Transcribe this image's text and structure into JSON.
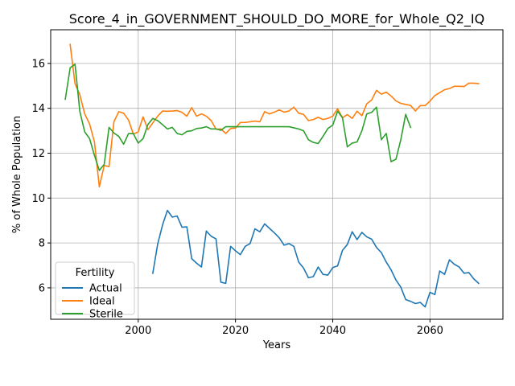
{
  "chart_data": {
    "type": "line",
    "title": "Score_4_in_GOVERNMENT_SHOULD_DO_MORE_for_Whole_Q2_IQ",
    "xlabel": "Years",
    "ylabel": "% of Whole Population",
    "xlim": [
      1982,
      2075
    ],
    "ylim": [
      4.6,
      17.5
    ],
    "xticks": [
      2000,
      2020,
      2040,
      2060
    ],
    "yticks": [
      6,
      8,
      10,
      12,
      14,
      16
    ],
    "grid": true,
    "legend": {
      "title": "Fertility",
      "placement": "lower-left"
    },
    "series": [
      {
        "name": "Actual",
        "color": "#1f77b4",
        "x": [
          2003,
          2004,
          2005,
          2006,
          2007,
          2008,
          2009,
          2010,
          2011,
          2012,
          2013,
          2014,
          2015,
          2016,
          2017,
          2018,
          2019,
          2020,
          2021,
          2022,
          2023,
          2024,
          2025,
          2026,
          2027,
          2028,
          2029,
          2030,
          2031,
          2032,
          2033,
          2034,
          2035,
          2036,
          2037,
          2038,
          2039,
          2040,
          2041,
          2042,
          2043,
          2044,
          2045,
          2046,
          2047,
          2048,
          2049,
          2050,
          2051,
          2052,
          2053,
          2054,
          2055,
          2056,
          2057,
          2058,
          2059,
          2060,
          2061,
          2062,
          2063,
          2064,
          2065,
          2066,
          2067,
          2068,
          2069,
          2070
        ],
        "y": [
          6.65,
          7.95,
          8.8,
          9.45,
          9.15,
          9.2,
          8.7,
          8.72,
          7.3,
          7.1,
          6.93,
          8.53,
          8.3,
          8.18,
          6.25,
          6.2,
          7.85,
          7.65,
          7.48,
          7.85,
          7.97,
          8.63,
          8.5,
          8.85,
          8.65,
          8.45,
          8.23,
          7.9,
          7.97,
          7.85,
          7.15,
          6.88,
          6.45,
          6.5,
          6.93,
          6.6,
          6.57,
          6.9,
          6.98,
          7.67,
          7.93,
          8.5,
          8.15,
          8.47,
          8.27,
          8.17,
          7.8,
          7.57,
          7.15,
          6.8,
          6.35,
          6.03,
          5.48,
          5.4,
          5.3,
          5.35,
          5.15,
          5.8,
          5.7,
          6.75,
          6.6,
          7.25,
          7.05,
          6.93,
          6.65,
          6.68,
          6.4,
          6.2
        ]
      },
      {
        "name": "Ideal",
        "color": "#ff7f0e",
        "x": [
          1986,
          1987,
          1988,
          1989,
          1990,
          1991,
          1992,
          1993,
          1994,
          1995,
          1996,
          1997,
          1998,
          1999,
          2000,
          2001,
          2002,
          2003,
          2004,
          2005,
          2006,
          2007,
          2008,
          2009,
          2010,
          2011,
          2012,
          2013,
          2014,
          2015,
          2016,
          2017,
          2018,
          2019,
          2020,
          2021,
          2022,
          2023,
          2024,
          2025,
          2026,
          2027,
          2028,
          2029,
          2030,
          2031,
          2032,
          2033,
          2034,
          2035,
          2036,
          2037,
          2038,
          2039,
          2040,
          2041,
          2042,
          2043,
          2044,
          2045,
          2046,
          2047,
          2048,
          2049,
          2050,
          2051,
          2052,
          2053,
          2054,
          2055,
          2056,
          2057,
          2058,
          2059,
          2060,
          2061,
          2062,
          2063,
          2064,
          2065,
          2066,
          2067,
          2068,
          2069,
          2070
        ],
        "y": [
          16.85,
          15.1,
          14.6,
          13.75,
          13.3,
          12.5,
          10.5,
          11.45,
          11.4,
          13.4,
          13.85,
          13.78,
          13.48,
          12.85,
          12.95,
          13.62,
          13.05,
          13.35,
          13.65,
          13.88,
          13.87,
          13.88,
          13.9,
          13.82,
          13.65,
          14.03,
          13.65,
          13.75,
          13.65,
          13.45,
          13.07,
          13.08,
          12.88,
          13.1,
          13.12,
          13.37,
          13.37,
          13.4,
          13.43,
          13.4,
          13.85,
          13.75,
          13.83,
          13.93,
          13.83,
          13.88,
          14.05,
          13.78,
          13.73,
          13.45,
          13.5,
          13.6,
          13.5,
          13.55,
          13.65,
          13.98,
          13.58,
          13.72,
          13.55,
          13.87,
          13.67,
          14.2,
          14.37,
          14.8,
          14.63,
          14.72,
          14.55,
          14.33,
          14.22,
          14.17,
          14.13,
          13.88,
          14.12,
          14.12,
          14.32,
          14.57,
          14.7,
          14.83,
          14.88,
          14.98,
          14.98,
          14.97,
          15.12,
          15.12,
          15.1
        ]
      },
      {
        "name": "Sterile",
        "color": "#2ca02c",
        "x": [
          1985,
          1986,
          1987,
          1988,
          1989,
          1990,
          1991,
          1992,
          1993,
          1994,
          1995,
          1996,
          1997,
          1998,
          1999,
          2000,
          2001,
          2002,
          2003,
          2004,
          2005,
          2006,
          2007,
          2008,
          2009,
          2010,
          2011,
          2012,
          2013,
          2014,
          2015,
          2016,
          2017,
          2018,
          2019,
          2020,
          2021,
          2022,
          2023,
          2024,
          2025,
          2026,
          2027,
          2028,
          2029,
          2030,
          2031,
          2032,
          2033,
          2034,
          2035,
          2036,
          2037,
          2038,
          2039,
          2040,
          2041,
          2042,
          2043,
          2044,
          2045,
          2046,
          2047,
          2048,
          2049,
          2050,
          2051,
          2052,
          2053,
          2054,
          2055,
          2056
        ],
        "y": [
          14.4,
          15.8,
          15.97,
          13.85,
          12.95,
          12.65,
          11.9,
          11.23,
          11.5,
          13.15,
          12.9,
          12.75,
          12.4,
          12.87,
          12.87,
          12.45,
          12.65,
          13.28,
          13.55,
          13.45,
          13.27,
          13.08,
          13.15,
          12.88,
          12.82,
          12.97,
          13.0,
          13.1,
          13.12,
          13.18,
          13.08,
          13.08,
          13.02,
          13.18,
          13.18,
          13.18,
          13.18,
          13.18,
          13.18,
          13.18,
          13.18,
          13.18,
          13.18,
          13.18,
          13.18,
          13.18,
          13.18,
          13.13,
          13.08,
          13.0,
          12.6,
          12.48,
          12.43,
          12.75,
          13.1,
          13.25,
          13.87,
          13.58,
          12.28,
          12.45,
          12.5,
          13.0,
          13.75,
          13.82,
          14.05,
          12.6,
          12.88,
          11.62,
          11.73,
          12.6,
          13.73,
          13.15
        ]
      }
    ]
  }
}
